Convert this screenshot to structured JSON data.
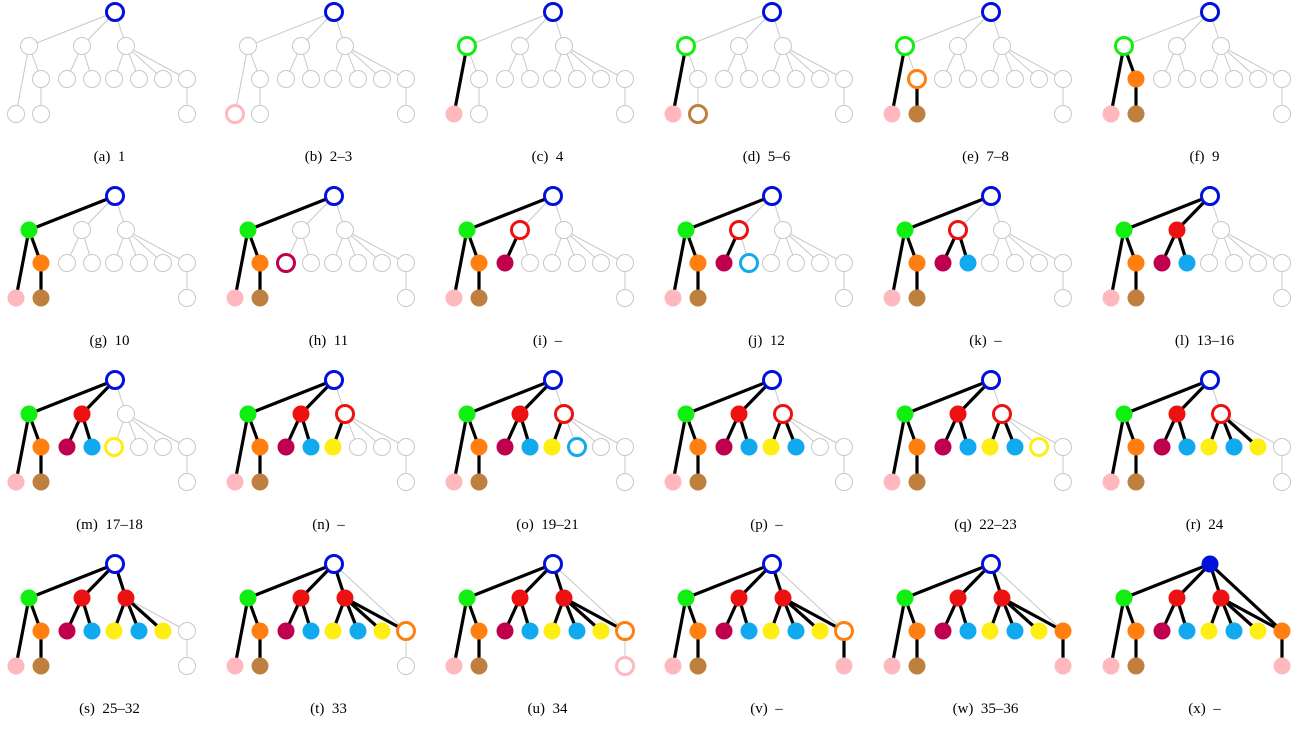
{
  "colors": {
    "blue": "#0011dd",
    "green": "#11ee11",
    "pink": "#ffb8bd",
    "brown": "#bf7f3f",
    "orange": "#ff7f11",
    "purple": "#bf004f",
    "red": "#ee1111",
    "cyan": "#11aaee",
    "yellow": "#ffee11",
    "gray": "#c8c8c8",
    "edge": "#000000"
  },
  "tree": {
    "nodes": [
      "A",
      "B",
      "C",
      "D",
      "E",
      "F",
      "G",
      "H",
      "I",
      "J",
      "K",
      "L",
      "M",
      "N",
      "O"
    ],
    "edges": [
      [
        "A",
        "B"
      ],
      [
        "A",
        "E"
      ],
      [
        "A",
        "H"
      ],
      [
        "A",
        "M"
      ],
      [
        "B",
        "C"
      ],
      [
        "C",
        "D"
      ],
      [
        "B",
        "O"
      ],
      [
        "E",
        "F"
      ],
      [
        "E",
        "G"
      ],
      [
        "H",
        "I"
      ],
      [
        "H",
        "J"
      ],
      [
        "H",
        "K"
      ],
      [
        "H",
        "L"
      ],
      [
        "M",
        "N"
      ]
    ]
  },
  "panels": [
    {
      "caption": "(a)  1",
      "nodes": {
        "A": "ring:blue"
      },
      "edges": []
    },
    {
      "caption": "(b)  2–3",
      "nodes": {
        "A": "ring:blue",
        "O": "ring:pink"
      },
      "edges": []
    },
    {
      "caption": "(c)  4",
      "nodes": {
        "A": "ring:blue",
        "B": "ring:green",
        "O": "fill:pink"
      },
      "edges": [
        [
          "B",
          "O"
        ]
      ]
    },
    {
      "caption": "(d)  5–6",
      "nodes": {
        "A": "ring:blue",
        "B": "ring:green",
        "O": "fill:pink",
        "D": "ring:brown"
      },
      "edges": [
        [
          "B",
          "O"
        ]
      ]
    },
    {
      "caption": "(e)  7–8",
      "nodes": {
        "A": "ring:blue",
        "B": "ring:green",
        "O": "fill:pink",
        "C": "ring:orange",
        "D": "fill:brown"
      },
      "edges": [
        [
          "B",
          "O"
        ],
        [
          "C",
          "D"
        ]
      ]
    },
    {
      "caption": "(f)  9",
      "nodes": {
        "A": "ring:blue",
        "B": "ring:green",
        "O": "fill:pink",
        "C": "fill:orange",
        "D": "fill:brown"
      },
      "edges": [
        [
          "B",
          "O"
        ],
        [
          "B",
          "C"
        ],
        [
          "C",
          "D"
        ]
      ]
    },
    {
      "caption": "(g)  10",
      "nodes": {
        "A": "ring:blue",
        "B": "fill:green",
        "O": "fill:pink",
        "C": "fill:orange",
        "D": "fill:brown"
      },
      "edges": [
        [
          "A",
          "B"
        ],
        [
          "B",
          "O"
        ],
        [
          "B",
          "C"
        ],
        [
          "C",
          "D"
        ]
      ]
    },
    {
      "caption": "(h)  11",
      "nodes": {
        "A": "ring:blue",
        "B": "fill:green",
        "O": "fill:pink",
        "C": "fill:orange",
        "D": "fill:brown",
        "F": "ring:purple"
      },
      "edges": [
        [
          "A",
          "B"
        ],
        [
          "B",
          "O"
        ],
        [
          "B",
          "C"
        ],
        [
          "C",
          "D"
        ]
      ]
    },
    {
      "caption": "(i)  –",
      "nodes": {
        "A": "ring:blue",
        "B": "fill:green",
        "O": "fill:pink",
        "C": "fill:orange",
        "D": "fill:brown",
        "E": "ring:red",
        "F": "fill:purple"
      },
      "edges": [
        [
          "A",
          "B"
        ],
        [
          "B",
          "O"
        ],
        [
          "B",
          "C"
        ],
        [
          "C",
          "D"
        ],
        [
          "E",
          "F"
        ]
      ]
    },
    {
      "caption": "(j)  12",
      "nodes": {
        "A": "ring:blue",
        "B": "fill:green",
        "O": "fill:pink",
        "C": "fill:orange",
        "D": "fill:brown",
        "E": "ring:red",
        "F": "fill:purple",
        "G": "ring:cyan"
      },
      "edges": [
        [
          "A",
          "B"
        ],
        [
          "B",
          "O"
        ],
        [
          "B",
          "C"
        ],
        [
          "C",
          "D"
        ],
        [
          "E",
          "F"
        ]
      ]
    },
    {
      "caption": "(k)  –",
      "nodes": {
        "A": "ring:blue",
        "B": "fill:green",
        "O": "fill:pink",
        "C": "fill:orange",
        "D": "fill:brown",
        "E": "ring:red",
        "F": "fill:purple",
        "G": "fill:cyan"
      },
      "edges": [
        [
          "A",
          "B"
        ],
        [
          "B",
          "O"
        ],
        [
          "B",
          "C"
        ],
        [
          "C",
          "D"
        ],
        [
          "E",
          "F"
        ],
        [
          "E",
          "G"
        ]
      ]
    },
    {
      "caption": "(l)  13–16",
      "nodes": {
        "A": "ring:blue",
        "B": "fill:green",
        "O": "fill:pink",
        "C": "fill:orange",
        "D": "fill:brown",
        "E": "fill:red",
        "F": "fill:purple",
        "G": "fill:cyan"
      },
      "edges": [
        [
          "A",
          "B"
        ],
        [
          "A",
          "E"
        ],
        [
          "B",
          "O"
        ],
        [
          "B",
          "C"
        ],
        [
          "C",
          "D"
        ],
        [
          "E",
          "F"
        ],
        [
          "E",
          "G"
        ]
      ]
    },
    {
      "caption": "(m)  17–18",
      "nodes": {
        "A": "ring:blue",
        "B": "fill:green",
        "O": "fill:pink",
        "C": "fill:orange",
        "D": "fill:brown",
        "E": "fill:red",
        "F": "fill:purple",
        "G": "fill:cyan",
        "I": "ring:yellow"
      },
      "edges": [
        [
          "A",
          "B"
        ],
        [
          "A",
          "E"
        ],
        [
          "B",
          "O"
        ],
        [
          "B",
          "C"
        ],
        [
          "C",
          "D"
        ],
        [
          "E",
          "F"
        ],
        [
          "E",
          "G"
        ]
      ]
    },
    {
      "caption": "(n)  –",
      "nodes": {
        "A": "ring:blue",
        "B": "fill:green",
        "O": "fill:pink",
        "C": "fill:orange",
        "D": "fill:brown",
        "E": "fill:red",
        "F": "fill:purple",
        "G": "fill:cyan",
        "H": "ring:red",
        "I": "fill:yellow"
      },
      "edges": [
        [
          "A",
          "B"
        ],
        [
          "A",
          "E"
        ],
        [
          "B",
          "O"
        ],
        [
          "B",
          "C"
        ],
        [
          "C",
          "D"
        ],
        [
          "E",
          "F"
        ],
        [
          "E",
          "G"
        ],
        [
          "H",
          "I"
        ]
      ]
    },
    {
      "caption": "(o)  19–21",
      "nodes": {
        "A": "ring:blue",
        "B": "fill:green",
        "O": "fill:pink",
        "C": "fill:orange",
        "D": "fill:brown",
        "E": "fill:red",
        "F": "fill:purple",
        "G": "fill:cyan",
        "H": "ring:red",
        "I": "fill:yellow",
        "J": "ring:cyan"
      },
      "edges": [
        [
          "A",
          "B"
        ],
        [
          "A",
          "E"
        ],
        [
          "B",
          "O"
        ],
        [
          "B",
          "C"
        ],
        [
          "C",
          "D"
        ],
        [
          "E",
          "F"
        ],
        [
          "E",
          "G"
        ],
        [
          "H",
          "I"
        ]
      ]
    },
    {
      "caption": "(p)  –",
      "nodes": {
        "A": "ring:blue",
        "B": "fill:green",
        "O": "fill:pink",
        "C": "fill:orange",
        "D": "fill:brown",
        "E": "fill:red",
        "F": "fill:purple",
        "G": "fill:cyan",
        "H": "ring:red",
        "I": "fill:yellow",
        "J": "fill:cyan"
      },
      "edges": [
        [
          "A",
          "B"
        ],
        [
          "A",
          "E"
        ],
        [
          "B",
          "O"
        ],
        [
          "B",
          "C"
        ],
        [
          "C",
          "D"
        ],
        [
          "E",
          "F"
        ],
        [
          "E",
          "G"
        ],
        [
          "H",
          "I"
        ],
        [
          "H",
          "J"
        ]
      ]
    },
    {
      "caption": "(q)  22–23",
      "nodes": {
        "A": "ring:blue",
        "B": "fill:green",
        "O": "fill:pink",
        "C": "fill:orange",
        "D": "fill:brown",
        "E": "fill:red",
        "F": "fill:purple",
        "G": "fill:cyan",
        "H": "ring:red",
        "I": "fill:yellow",
        "J": "fill:cyan",
        "K": "ring:yellow"
      },
      "edges": [
        [
          "A",
          "B"
        ],
        [
          "A",
          "E"
        ],
        [
          "B",
          "O"
        ],
        [
          "B",
          "C"
        ],
        [
          "C",
          "D"
        ],
        [
          "E",
          "F"
        ],
        [
          "E",
          "G"
        ],
        [
          "H",
          "I"
        ],
        [
          "H",
          "J"
        ]
      ]
    },
    {
      "caption": "(r)  24",
      "nodes": {
        "A": "ring:blue",
        "B": "fill:green",
        "O": "fill:pink",
        "C": "fill:orange",
        "D": "fill:brown",
        "E": "fill:red",
        "F": "fill:purple",
        "G": "fill:cyan",
        "H": "ring:red",
        "I": "fill:yellow",
        "J": "fill:cyan",
        "K": "fill:yellow"
      },
      "edges": [
        [
          "A",
          "B"
        ],
        [
          "A",
          "E"
        ],
        [
          "B",
          "O"
        ],
        [
          "B",
          "C"
        ],
        [
          "C",
          "D"
        ],
        [
          "E",
          "F"
        ],
        [
          "E",
          "G"
        ],
        [
          "H",
          "I"
        ],
        [
          "H",
          "J"
        ],
        [
          "H",
          "K"
        ]
      ]
    },
    {
      "caption": "(s)  25–32",
      "nodes": {
        "A": "ring:blue",
        "B": "fill:green",
        "O": "fill:pink",
        "C": "fill:orange",
        "D": "fill:brown",
        "E": "fill:red",
        "F": "fill:purple",
        "G": "fill:cyan",
        "H": "fill:red",
        "I": "fill:yellow",
        "J": "fill:cyan",
        "K": "fill:yellow"
      },
      "edges": [
        [
          "A",
          "B"
        ],
        [
          "A",
          "E"
        ],
        [
          "A",
          "H"
        ],
        [
          "B",
          "O"
        ],
        [
          "B",
          "C"
        ],
        [
          "C",
          "D"
        ],
        [
          "E",
          "F"
        ],
        [
          "E",
          "G"
        ],
        [
          "H",
          "I"
        ],
        [
          "H",
          "J"
        ],
        [
          "H",
          "K"
        ]
      ]
    },
    {
      "caption": "(t)  33",
      "nodes": {
        "A": "ring:blue",
        "B": "fill:green",
        "O": "fill:pink",
        "C": "fill:orange",
        "D": "fill:brown",
        "E": "fill:red",
        "F": "fill:purple",
        "G": "fill:cyan",
        "H": "fill:red",
        "I": "fill:yellow",
        "J": "fill:cyan",
        "K": "fill:yellow",
        "L": "fill:yellow",
        "M": "ring:orange"
      },
      "edges": [
        [
          "A",
          "B"
        ],
        [
          "A",
          "E"
        ],
        [
          "A",
          "H"
        ],
        [
          "B",
          "O"
        ],
        [
          "B",
          "C"
        ],
        [
          "C",
          "D"
        ],
        [
          "E",
          "F"
        ],
        [
          "E",
          "G"
        ],
        [
          "H",
          "I"
        ],
        [
          "H",
          "J"
        ],
        [
          "H",
          "K"
        ],
        [
          "H",
          "L"
        ]
      ]
    },
    {
      "caption": "(u)  34",
      "nodes": {
        "A": "ring:blue",
        "B": "fill:green",
        "O": "fill:pink",
        "C": "fill:orange",
        "D": "fill:brown",
        "E": "fill:red",
        "F": "fill:purple",
        "G": "fill:cyan",
        "H": "fill:red",
        "I": "fill:yellow",
        "J": "fill:cyan",
        "K": "fill:yellow",
        "L": "fill:yellow",
        "M": "ring:orange",
        "N": "ring:pink"
      },
      "edges": [
        [
          "A",
          "B"
        ],
        [
          "A",
          "E"
        ],
        [
          "A",
          "H"
        ],
        [
          "B",
          "O"
        ],
        [
          "B",
          "C"
        ],
        [
          "C",
          "D"
        ],
        [
          "E",
          "F"
        ],
        [
          "E",
          "G"
        ],
        [
          "H",
          "I"
        ],
        [
          "H",
          "J"
        ],
        [
          "H",
          "K"
        ],
        [
          "H",
          "L"
        ]
      ]
    },
    {
      "caption": "(v)  –",
      "nodes": {
        "A": "ring:blue",
        "B": "fill:green",
        "O": "fill:pink",
        "C": "fill:orange",
        "D": "fill:brown",
        "E": "fill:red",
        "F": "fill:purple",
        "G": "fill:cyan",
        "H": "fill:red",
        "I": "fill:yellow",
        "J": "fill:cyan",
        "K": "fill:yellow",
        "L": "fill:yellow",
        "M": "ring:orange",
        "N": "fill:pink"
      },
      "edges": [
        [
          "A",
          "B"
        ],
        [
          "A",
          "E"
        ],
        [
          "A",
          "H"
        ],
        [
          "B",
          "O"
        ],
        [
          "B",
          "C"
        ],
        [
          "C",
          "D"
        ],
        [
          "E",
          "F"
        ],
        [
          "E",
          "G"
        ],
        [
          "H",
          "I"
        ],
        [
          "H",
          "J"
        ],
        [
          "H",
          "K"
        ],
        [
          "H",
          "L"
        ],
        [
          "M",
          "N"
        ]
      ]
    },
    {
      "caption": "(w)  35–36",
      "nodes": {
        "A": "ring:blue",
        "B": "fill:green",
        "O": "fill:pink",
        "C": "fill:orange",
        "D": "fill:brown",
        "E": "fill:red",
        "F": "fill:purple",
        "G": "fill:cyan",
        "H": "fill:red",
        "I": "fill:yellow",
        "J": "fill:cyan",
        "K": "fill:yellow",
        "L": "fill:yellow",
        "M": "fill:orange",
        "N": "fill:pink"
      },
      "edges": [
        [
          "A",
          "B"
        ],
        [
          "A",
          "E"
        ],
        [
          "A",
          "H"
        ],
        [
          "B",
          "O"
        ],
        [
          "B",
          "C"
        ],
        [
          "C",
          "D"
        ],
        [
          "E",
          "F"
        ],
        [
          "E",
          "G"
        ],
        [
          "H",
          "I"
        ],
        [
          "H",
          "J"
        ],
        [
          "H",
          "K"
        ],
        [
          "H",
          "L"
        ],
        [
          "M",
          "N"
        ]
      ]
    },
    {
      "caption": "(x)  –",
      "nodes": {
        "A": "fill:blue",
        "B": "fill:green",
        "O": "fill:pink",
        "C": "fill:orange",
        "D": "fill:brown",
        "E": "fill:red",
        "F": "fill:purple",
        "G": "fill:cyan",
        "H": "fill:red",
        "I": "fill:yellow",
        "J": "fill:cyan",
        "K": "fill:yellow",
        "L": "fill:yellow",
        "M": "fill:orange",
        "N": "fill:pink"
      },
      "edges": [
        [
          "A",
          "B"
        ],
        [
          "A",
          "E"
        ],
        [
          "A",
          "H"
        ],
        [
          "A",
          "M"
        ],
        [
          "B",
          "O"
        ],
        [
          "B",
          "C"
        ],
        [
          "C",
          "D"
        ],
        [
          "E",
          "F"
        ],
        [
          "E",
          "G"
        ],
        [
          "H",
          "I"
        ],
        [
          "H",
          "J"
        ],
        [
          "H",
          "K"
        ],
        [
          "H",
          "L"
        ],
        [
          "M",
          "N"
        ]
      ]
    }
  ]
}
